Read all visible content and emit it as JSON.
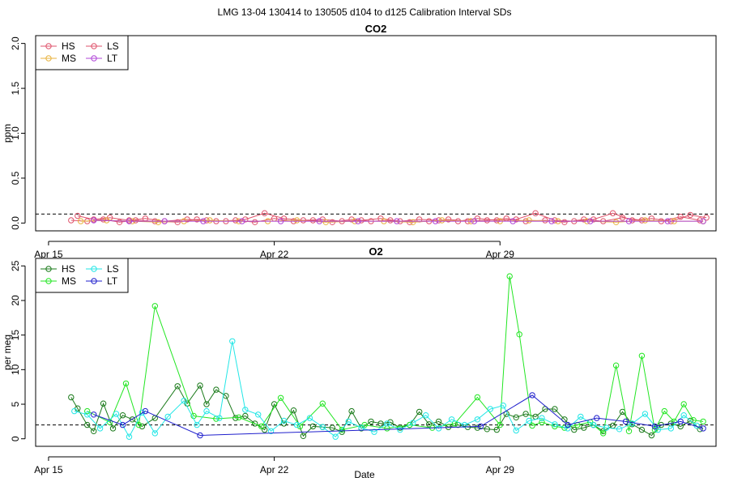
{
  "page_title": "LMG   13-04    130414 to 130505    d104 to d125   Calibration Interval SDs",
  "xlabel": "Date",
  "x_ticks": [
    {
      "label": "Apr 15",
      "day": 15
    },
    {
      "label": "Apr 22",
      "day": 22
    },
    {
      "label": "Apr 29",
      "day": 29
    }
  ],
  "chart_data": [
    {
      "type": "line",
      "title": "CO2",
      "ylabel": "ppm",
      "xlim_day": [
        14.6,
        35.7
      ],
      "ylim": [
        0,
        2.0
      ],
      "y_ticks": [
        {
          "value": 0.0,
          "label": "0.0"
        },
        {
          "value": 0.5,
          "label": "0.5"
        },
        {
          "value": 1.0,
          "label": "1.0"
        },
        {
          "value": 1.5,
          "label": "1.5"
        },
        {
          "value": 2.0,
          "label": "2.0"
        }
      ],
      "reference_line": 0.1,
      "legend_position": "top-left",
      "legend": [
        {
          "name": "HS",
          "color": "#DF536B"
        },
        {
          "name": "LS",
          "color": "#DF536B"
        },
        {
          "name": "MS",
          "color": "#E8B23C"
        },
        {
          "name": "LT",
          "color": "#B044D8"
        }
      ],
      "series": [
        {
          "name": "HS",
          "color": "#DF536B",
          "x": [
            15.7,
            16.2,
            16.7,
            17.2,
            17.7,
            18.3,
            19.0,
            19.6,
            20.2,
            20.8,
            21.4,
            22.0,
            22.6,
            23.2,
            23.8,
            24.4,
            25.0,
            25.6,
            26.2,
            26.8,
            27.4,
            28.0,
            28.6,
            29.2,
            29.8,
            30.4,
            31.0,
            31.6,
            32.2,
            32.8,
            33.4,
            34.0,
            34.6,
            35.2
          ],
          "y": [
            0.03,
            0.02,
            0.04,
            0.01,
            0.03,
            0.02,
            0.01,
            0.04,
            0.02,
            0.03,
            0.01,
            0.05,
            0.02,
            0.03,
            0.01,
            0.04,
            0.02,
            0.03,
            0.01,
            0.02,
            0.04,
            0.02,
            0.03,
            0.05,
            0.02,
            0.03,
            0.01,
            0.04,
            0.02,
            0.06,
            0.03,
            0.02,
            0.07,
            0.03
          ]
        },
        {
          "name": "LS",
          "color": "#DF536B",
          "x": [
            15.9,
            16.4,
            16.9,
            17.5,
            18.0,
            18.6,
            19.3,
            19.9,
            20.5,
            21.1,
            21.7,
            22.3,
            22.9,
            23.5,
            24.1,
            24.7,
            25.3,
            25.9,
            26.5,
            27.1,
            27.7,
            28.3,
            28.9,
            29.5,
            30.1,
            30.7,
            31.3,
            31.9,
            32.5,
            33.1,
            33.7,
            34.3,
            34.9,
            35.4
          ],
          "y": [
            0.08,
            0.04,
            0.06,
            0.03,
            0.05,
            0.02,
            0.04,
            0.03,
            0.02,
            0.04,
            0.11,
            0.05,
            0.03,
            0.04,
            0.02,
            0.03,
            0.05,
            0.02,
            0.04,
            0.03,
            0.02,
            0.05,
            0.03,
            0.04,
            0.11,
            0.03,
            0.02,
            0.04,
            0.11,
            0.03,
            0.05,
            0.02,
            0.09,
            0.06
          ]
        },
        {
          "name": "MS",
          "color": "#E8B23C",
          "x": [
            16.0,
            16.8,
            17.6,
            18.4,
            19.2,
            20.0,
            20.9,
            21.8,
            22.7,
            23.6,
            24.5,
            25.4,
            26.3,
            27.2,
            28.1,
            29.0,
            29.9,
            30.8,
            31.7,
            32.6,
            33.5,
            34.4,
            35.3
          ],
          "y": [
            0.02,
            0.03,
            0.02,
            0.01,
            0.02,
            0.03,
            0.02,
            0.02,
            0.03,
            0.01,
            0.02,
            0.02,
            0.01,
            0.03,
            0.02,
            0.02,
            0.03,
            0.02,
            0.02,
            0.01,
            0.03,
            0.02,
            0.02
          ]
        },
        {
          "name": "LT",
          "color": "#B044D8",
          "x": [
            16.4,
            17.5,
            18.6,
            19.8,
            21.0,
            22.2,
            23.4,
            24.6,
            25.8,
            27.0,
            28.2,
            29.4,
            30.6,
            31.8,
            33.0,
            34.2,
            35.3
          ],
          "y": [
            0.03,
            0.02,
            0.02,
            0.02,
            0.02,
            0.02,
            0.02,
            0.02,
            0.02,
            0.02,
            0.02,
            0.02,
            0.02,
            0.02,
            0.02,
            0.02,
            0.02
          ]
        }
      ]
    },
    {
      "type": "line",
      "title": "O2",
      "ylabel": "per meg",
      "xlim_day": [
        14.6,
        35.7
      ],
      "ylim": [
        0,
        25
      ],
      "y_ticks": [
        {
          "value": 0,
          "label": "0"
        },
        {
          "value": 5,
          "label": "5"
        },
        {
          "value": 10,
          "label": "10"
        },
        {
          "value": 15,
          "label": "15"
        },
        {
          "value": 20,
          "label": "20"
        },
        {
          "value": 25,
          "label": "25"
        }
      ],
      "reference_line": 2,
      "legend_position": "top-left",
      "legend": [
        {
          "name": "HS",
          "color": "#1A7A1A"
        },
        {
          "name": "LS",
          "color": "#22E6E6"
        },
        {
          "name": "MS",
          "color": "#22E622"
        },
        {
          "name": "LT",
          "color": "#1F1FCC"
        }
      ],
      "series": [
        {
          "name": "HS",
          "color": "#1A7A1A",
          "x": [
            15.7,
            15.9,
            16.2,
            16.4,
            16.7,
            17.0,
            17.3,
            17.6,
            17.9,
            18.3,
            19.0,
            19.3,
            19.7,
            19.9,
            20.2,
            20.5,
            20.8,
            21.1,
            21.4,
            21.7,
            22.0,
            22.3,
            22.6,
            22.9,
            23.2,
            23.5,
            23.8,
            24.1,
            24.4,
            24.7,
            25.0,
            25.3,
            25.6,
            25.9,
            26.2,
            26.5,
            26.8,
            27.1,
            27.4,
            27.7,
            28.0,
            28.3,
            28.6,
            28.9,
            29.2,
            29.5,
            29.8,
            30.1,
            30.4,
            30.7,
            31.0,
            31.3,
            31.6,
            31.9,
            32.2,
            32.5,
            32.8,
            33.1,
            33.4,
            33.7,
            34.0,
            34.3,
            34.6,
            34.9,
            35.2
          ],
          "y": [
            6.0,
            4.4,
            2.0,
            1.1,
            5.1,
            1.5,
            3.4,
            2.8,
            1.8,
            3.0,
            7.6,
            5.1,
            7.7,
            5.0,
            7.1,
            6.2,
            3.0,
            3.3,
            2.2,
            1.3,
            5.0,
            2.2,
            4.1,
            0.4,
            1.8,
            1.7,
            1.6,
            1.0,
            4.0,
            1.5,
            2.5,
            2.2,
            2.4,
            1.6,
            2.0,
            3.9,
            2.1,
            2.5,
            1.7,
            2.0,
            1.7,
            1.6,
            1.4,
            1.3,
            3.6,
            3.1,
            3.6,
            3.2,
            4.3,
            4.3,
            2.8,
            1.3,
            1.6,
            2.0,
            1.1,
            1.9,
            3.9,
            2.1,
            1.3,
            0.5,
            2.0,
            2.2,
            1.8,
            2.6,
            1.4
          ]
        },
        {
          "name": "MS",
          "color": "#22E622",
          "x": [
            16.2,
            16.9,
            17.4,
            17.8,
            18.3,
            19.5,
            20.2,
            20.9,
            21.6,
            22.2,
            22.8,
            23.5,
            24.1,
            24.8,
            25.5,
            26.2,
            26.9,
            27.6,
            28.3,
            29.0,
            29.3,
            29.6,
            30.0,
            30.3,
            30.7,
            31.0,
            31.4,
            31.8,
            32.2,
            32.6,
            33.0,
            33.4,
            33.8,
            34.1,
            34.4,
            34.7,
            35.0,
            35.3
          ],
          "y": [
            4.0,
            2.4,
            8.0,
            2.0,
            19.2,
            3.3,
            2.9,
            3.1,
            1.8,
            5.9,
            1.8,
            5.1,
            1.3,
            2.0,
            1.5,
            2.0,
            1.6,
            2.2,
            6.0,
            2.0,
            23.5,
            15.1,
            1.9,
            2.4,
            1.8,
            1.6,
            2.0,
            2.4,
            0.8,
            10.6,
            1.1,
            12.0,
            1.3,
            4.0,
            2.5,
            5.0,
            2.7,
            2.5
          ]
        },
        {
          "name": "LS",
          "color": "#22E6E6",
          "x": [
            15.8,
            16.2,
            16.6,
            17.1,
            17.5,
            17.9,
            18.3,
            18.7,
            19.2,
            19.6,
            19.9,
            20.3,
            20.7,
            21.1,
            21.5,
            21.9,
            22.3,
            22.7,
            23.1,
            23.5,
            23.9,
            24.3,
            24.7,
            25.1,
            25.5,
            25.9,
            26.3,
            26.7,
            27.1,
            27.5,
            27.9,
            28.3,
            28.7,
            29.1,
            29.5,
            29.9,
            30.3,
            30.7,
            31.1,
            31.5,
            31.9,
            32.3,
            32.7,
            33.1,
            33.5,
            33.9,
            34.3,
            34.7,
            35.1
          ],
          "y": [
            4.0,
            3.5,
            1.5,
            3.6,
            0.3,
            3.8,
            0.8,
            3.2,
            5.5,
            2.0,
            4.0,
            3.0,
            14.1,
            4.2,
            3.5,
            1.1,
            2.6,
            2.0,
            3.0,
            1.7,
            0.3,
            2.5,
            1.6,
            1.0,
            2.2,
            1.3,
            2.3,
            3.4,
            1.5,
            2.8,
            2.0,
            2.8,
            4.3,
            4.8,
            1.2,
            2.6,
            3.0,
            2.1,
            1.5,
            3.2,
            2.0,
            1.6,
            1.4,
            2.2,
            3.6,
            1.3,
            1.5,
            3.4,
            1.9
          ]
        },
        {
          "name": "LT",
          "color": "#1F1FCC",
          "x": [
            16.4,
            17.3,
            18.0,
            19.7,
            28.4,
            30.0,
            31.1,
            32.0,
            32.9,
            33.8,
            34.6,
            35.3
          ],
          "y": [
            3.5,
            2.0,
            4.0,
            0.5,
            1.8,
            6.3,
            2.0,
            3.0,
            2.5,
            1.8,
            2.5,
            1.5
          ]
        }
      ]
    }
  ]
}
